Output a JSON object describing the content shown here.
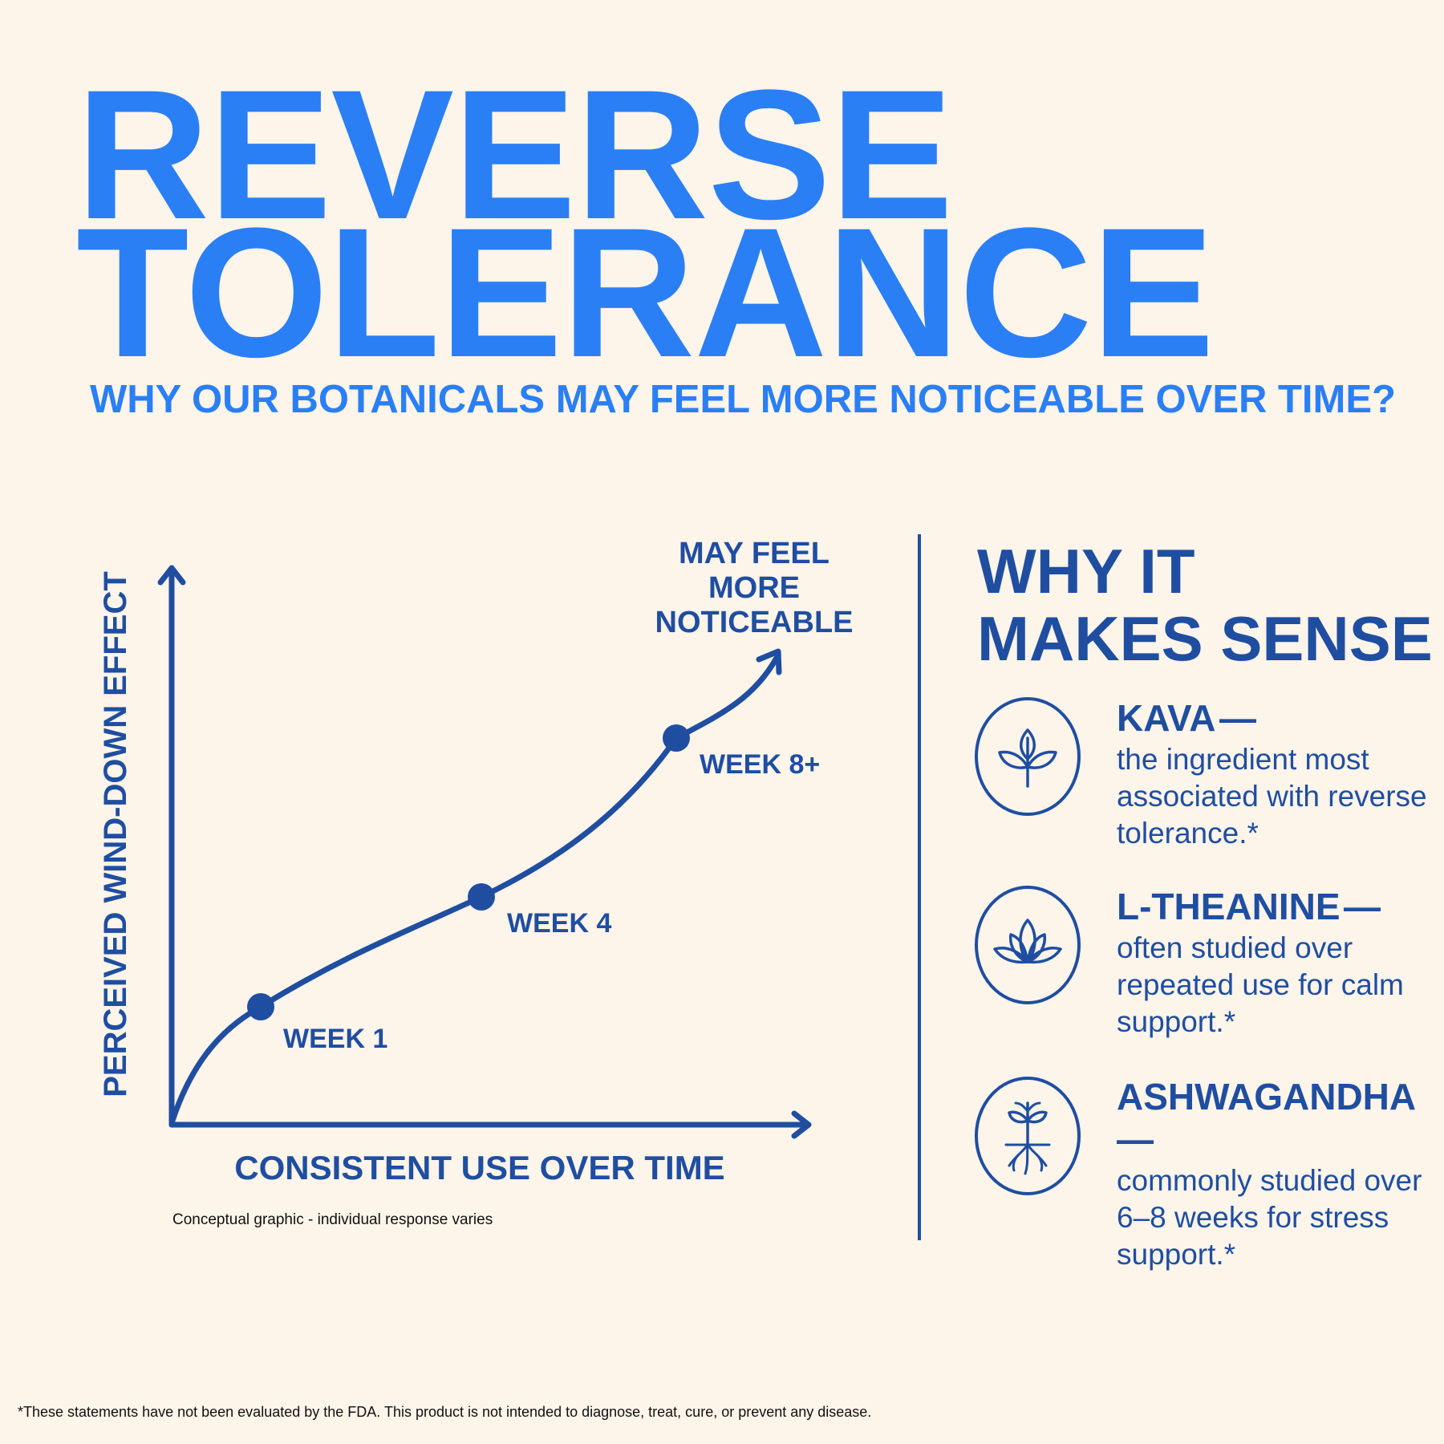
{
  "header": {
    "title_line1": "REVERSE",
    "title_line2": "TOLERANCE",
    "subtitle": "WHY OUR BOTANICALS MAY FEEL MORE NOTICEABLE OVER TIME?"
  },
  "chart_data": {
    "type": "line",
    "xlabel": "CONSISTENT USE OVER TIME",
    "ylabel": "PERCEIVED WIND-DOWN EFFECT",
    "annotation": [
      "MAY FEEL",
      "MORE",
      "NOTICEABLE"
    ],
    "points": [
      {
        "label": "WEEK 1"
      },
      {
        "label": "WEEK 4"
      },
      {
        "label": "WEEK 8+"
      }
    ],
    "note": "Conceptual graphic - individual response varies"
  },
  "why_section": {
    "title_line1": "WHY IT",
    "title_line2": "MAKES SENSE",
    "dash": "—",
    "items": [
      {
        "name": "KAVA",
        "icon": "leaf-icon",
        "desc": "the ingredient most associated with reverse tolerance.*"
      },
      {
        "name": "L-THEANINE",
        "icon": "lotus-icon",
        "desc": "often studied over repeated use for calm support.*"
      },
      {
        "name": "ASHWAGANDHA",
        "icon": "root-plant-icon",
        "desc": "commonly studied over 6–8 weeks for stress support.*"
      }
    ]
  },
  "colors": {
    "title_blue": "#2a7ff5",
    "dark_blue": "#1f4ea1",
    "background": "#fdf4ea"
  },
  "disclaimer": "*These statements have not been evaluated by the FDA. This product is not intended to diagnose, treat, cure, or prevent any disease."
}
